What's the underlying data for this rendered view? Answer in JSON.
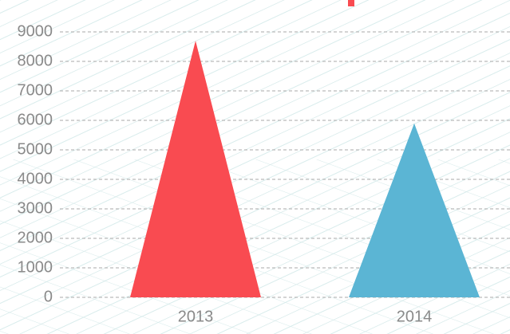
{
  "chart_data": {
    "type": "bar",
    "categories": [
      "2013",
      "2014"
    ],
    "values": [
      8700,
      5900
    ],
    "colors": [
      "#f94b51",
      "#5bb5d4"
    ],
    "ylim": [
      0,
      9000
    ],
    "yticks": [
      0,
      1000,
      2000,
      3000,
      4000,
      5000,
      6000,
      7000,
      8000,
      9000
    ],
    "grid": true
  }
}
